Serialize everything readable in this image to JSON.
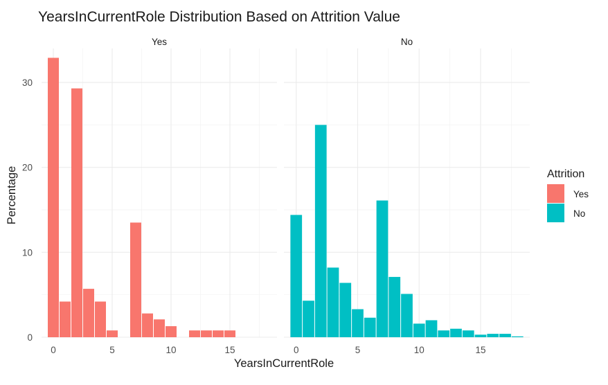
{
  "chart_data": {
    "type": "bar",
    "title": "YearsInCurrentRole Distribution Based on Attrition Value",
    "xlabel": "YearsInCurrentRole",
    "ylabel": "Percentage",
    "xlim": [
      -1,
      19
    ],
    "ylim": [
      0,
      34
    ],
    "x_ticks": [
      0,
      5,
      10,
      15
    ],
    "y_ticks": [
      0,
      10,
      20,
      30
    ],
    "grid": true,
    "legend": {
      "title": "Attrition",
      "position": "right",
      "entries": [
        {
          "label": "Yes",
          "color": "#F8766D"
        },
        {
          "label": "No",
          "color": "#00BFC4"
        }
      ]
    },
    "facets": [
      {
        "name": "Yes",
        "color": "#F8766D",
        "x": [
          0,
          1,
          2,
          3,
          4,
          5,
          6,
          7,
          8,
          9,
          10,
          11,
          12,
          13,
          14,
          15
        ],
        "values": [
          32.9,
          4.2,
          29.3,
          5.7,
          4.2,
          0.8,
          0.0,
          13.5,
          2.8,
          2.1,
          1.3,
          0.0,
          0.8,
          0.8,
          0.8,
          0.8
        ]
      },
      {
        "name": "No",
        "color": "#00BFC4",
        "x": [
          0,
          1,
          2,
          3,
          4,
          5,
          6,
          7,
          8,
          9,
          10,
          11,
          12,
          13,
          14,
          15,
          16,
          17,
          18
        ],
        "values": [
          14.4,
          4.3,
          25.0,
          8.2,
          6.4,
          3.3,
          2.3,
          16.1,
          7.1,
          5.1,
          1.6,
          2.0,
          0.8,
          1.0,
          0.8,
          0.3,
          0.4,
          0.4,
          0.1
        ]
      }
    ]
  }
}
